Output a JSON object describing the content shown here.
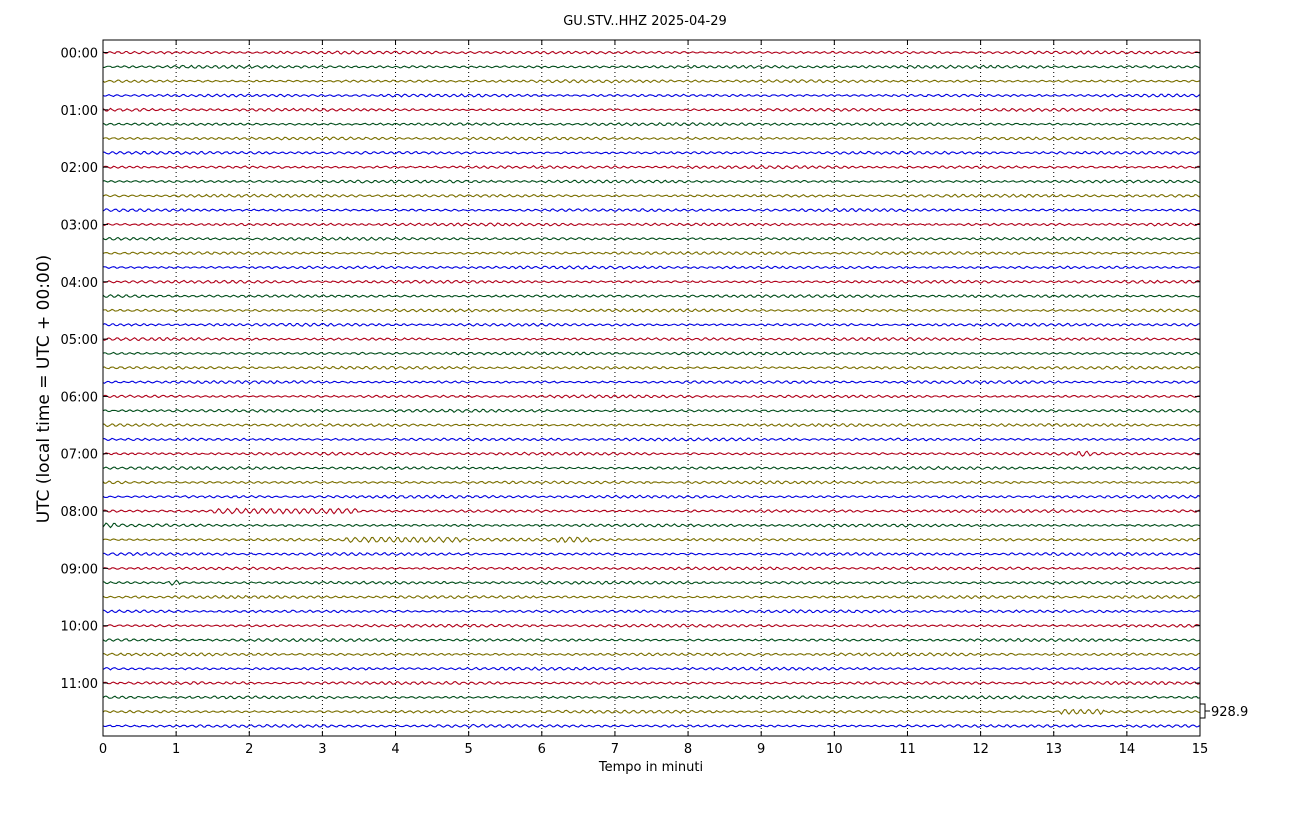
{
  "chart_data": {
    "type": "line",
    "title": "GU.STV..HHZ 2025-04-29",
    "xlabel": "Tempo in minuti",
    "ylabel": "UTC (local time = UTC + 00:00)",
    "xlim": [
      0,
      15
    ],
    "x_ticks": [
      "0",
      "1",
      "2",
      "3",
      "4",
      "5",
      "6",
      "7",
      "8",
      "9",
      "10",
      "11",
      "12",
      "13",
      "14",
      "15"
    ],
    "y_ticks": [
      "00:00",
      "01:00",
      "02:00",
      "03:00",
      "04:00",
      "05:00",
      "06:00",
      "07:00",
      "08:00",
      "09:00",
      "10:00",
      "11:00"
    ],
    "grid": "vertical dotted",
    "trace_interval_minutes": 15,
    "trace_count": 48,
    "trace_colors": [
      "#b0001a",
      "#004d1a",
      "#7a6f00",
      "#0000e0"
    ],
    "scale_label": "928.9",
    "events": [
      {
        "trace": 32,
        "start_min": 1.5,
        "end_min": 3.5
      },
      {
        "trace": 33,
        "start_min": 0.0,
        "end_min": 0.2
      },
      {
        "trace": 34,
        "start_min": 3.3,
        "end_min": 4.9
      },
      {
        "trace": 34,
        "start_min": 6.2,
        "end_min": 6.7
      },
      {
        "trace": 37,
        "start_min": 0.9,
        "end_min": 1.05
      },
      {
        "trace": 28,
        "start_min": 13.3,
        "end_min": 13.5
      },
      {
        "trace": 46,
        "start_min": 13.1,
        "end_min": 13.7
      }
    ]
  }
}
